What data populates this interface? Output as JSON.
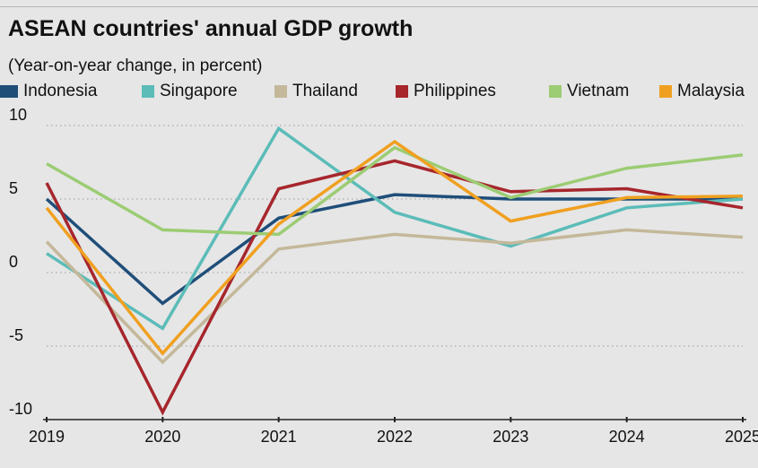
{
  "title": "ASEAN countries' annual GDP growth",
  "subtitle": "(Year-on-year change, in percent)",
  "colors": {
    "Indonesia": "#1f4e79",
    "Singapore": "#5bbcb8",
    "Thailand": "#c4b89a",
    "Philippines": "#a6262c",
    "Vietnam": "#9ccc73",
    "Malaysia": "#f0a020"
  },
  "chart_data": {
    "type": "line",
    "title": "ASEAN countries' annual GDP growth",
    "subtitle": "(Year-on-year change, in percent)",
    "xlabel": "",
    "ylabel": "",
    "x": [
      "2019",
      "2020",
      "2021",
      "2022",
      "2023",
      "2024",
      "2025"
    ],
    "ylim": [
      -10,
      10
    ],
    "yticks": [
      "10",
      "5",
      "0",
      "-5",
      "-10"
    ],
    "grid": "horizontal dotted",
    "legend_position": "top",
    "series": [
      {
        "name": "Indonesia",
        "values": [
          5.0,
          -2.1,
          3.7,
          5.3,
          5.0,
          5.0,
          5.0
        ]
      },
      {
        "name": "Singapore",
        "values": [
          1.3,
          -3.8,
          9.8,
          4.1,
          1.8,
          4.4,
          5.0
        ]
      },
      {
        "name": "Thailand",
        "values": [
          2.1,
          -6.1,
          1.6,
          2.6,
          2.0,
          2.9,
          2.4
        ]
      },
      {
        "name": "Philippines",
        "values": [
          6.1,
          -9.5,
          5.7,
          7.6,
          5.5,
          5.7,
          4.4
        ]
      },
      {
        "name": "Vietnam",
        "values": [
          7.4,
          2.9,
          2.6,
          8.5,
          5.1,
          7.1,
          8.0
        ]
      },
      {
        "name": "Malaysia",
        "values": [
          4.4,
          -5.5,
          3.3,
          8.9,
          3.5,
          5.1,
          5.2
        ]
      }
    ]
  }
}
